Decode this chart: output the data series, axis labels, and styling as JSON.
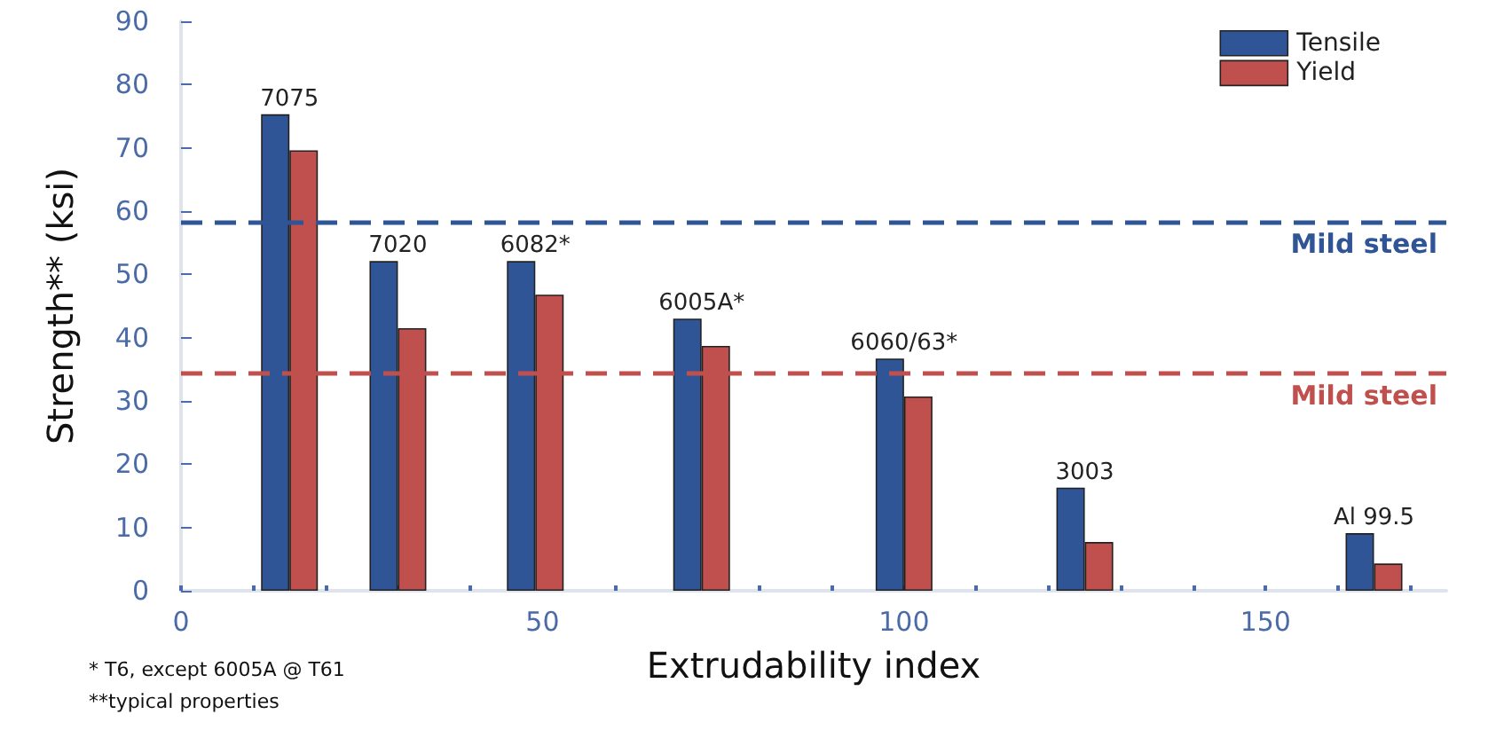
{
  "chart_data": {
    "type": "bar",
    "xlabel": "Extrudability index",
    "ylabel": "Strength** (ksi)",
    "xlim": [
      0,
      175
    ],
    "xticks": [
      0,
      {
        "value": 10,
        "label": null
      },
      {
        "value": 20,
        "label": null
      },
      {
        "value": 30,
        "label": null
      },
      {
        "value": 40,
        "label": null
      },
      50,
      {
        "value": 60,
        "label": null
      },
      {
        "value": 70,
        "label": null
      },
      {
        "value": 80,
        "label": null
      },
      {
        "value": 90,
        "label": null
      },
      100,
      {
        "value": 110,
        "label": null
      },
      {
        "value": 120,
        "label": null
      },
      {
        "value": 130,
        "label": null
      },
      {
        "value": 140,
        "label": null
      },
      150,
      {
        "value": 160,
        "label": null
      },
      {
        "value": 170,
        "label": null
      }
    ],
    "ylim": [
      0,
      90
    ],
    "yticks": [
      0,
      10,
      20,
      30,
      40,
      50,
      60,
      70,
      80,
      90
    ],
    "x": [
      15,
      30,
      49,
      72,
      100,
      125,
      165
    ],
    "series": [
      {
        "name": "Tensile",
        "color": "#2f5597",
        "values": [
          75.3,
          52.1,
          52.1,
          43,
          36.7,
          16.3,
          9.1
        ]
      },
      {
        "name": "Yield",
        "color": "#c0504d",
        "values": [
          69.6,
          41.5,
          46.8,
          38.7,
          30.7,
          7.7,
          4.3
        ]
      }
    ],
    "ref_lines": [
      {
        "axis": "y",
        "value": 58.3,
        "label": "Mild steel",
        "color": "#2f5597",
        "line_style": "dashed"
      },
      {
        "axis": "y",
        "value": 34.4,
        "label": "Mild steel",
        "color": "#c0504d",
        "line_style": "dashed"
      }
    ],
    "annotations": [
      {
        "text": "7075",
        "x": 15,
        "y": 75.3
      },
      {
        "text": "7020",
        "x": 30,
        "y": 52.1
      },
      {
        "text": "6082*",
        "x": 49,
        "y": 52.1
      },
      {
        "text": "6005A*",
        "x": 72,
        "y": 43
      },
      {
        "text": "6060/63*",
        "x": 100,
        "y": 36.7
      },
      {
        "text": "3003",
        "x": 125,
        "y": 16.3
      },
      {
        "text": "Al 99.5",
        "x": 165,
        "y": 9.1
      },
      "* T6, except 6005A @ T61",
      "**typical properties"
    ],
    "legend": "top right",
    "grid": false
  }
}
